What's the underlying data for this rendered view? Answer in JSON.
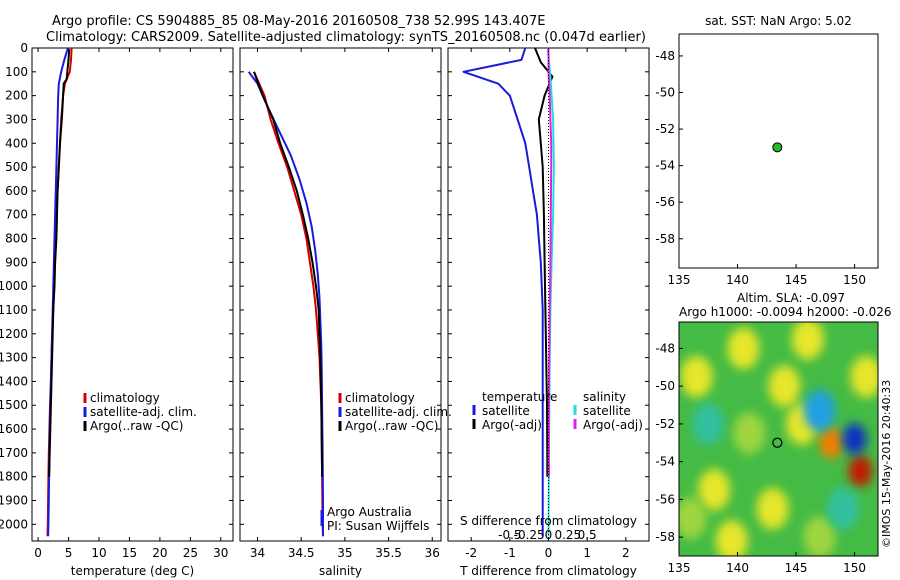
{
  "header": {
    "line1": "Argo profile: CS 5904885_85 08-May-2016 20160508_738 52.99S 143.407E",
    "line2": "Climatology: CARS2009. Satellite-adjusted climatology: synTS_20160508.nc (0.047d earlier)"
  },
  "side": {
    "sst_title": "sat. SST: NaN Argo: 5.02",
    "sla_title1": "Altim. SLA: -0.097",
    "sla_title2": "Argo h1000: -0.0094 h2000: -0.026",
    "credit": "©IMOS 15-May-2016 20:40:33"
  },
  "colors": {
    "climatology": "#d40000",
    "satellite": "#1a1adc",
    "argo": "#000000",
    "sal_satellite": "#22dddd",
    "sal_argo": "#e020e0",
    "dot": "#22bb22"
  },
  "chart_data": [
    {
      "type": "line",
      "id": "temperature",
      "xlabel": "temperature (deg C)",
      "ylabel": "",
      "xlim": [
        -1,
        32
      ],
      "ylim": [
        2070,
        0
      ],
      "xticks": [
        0,
        5,
        10,
        15,
        20,
        25,
        30
      ],
      "yticks": [
        0,
        100,
        200,
        300,
        400,
        500,
        600,
        700,
        800,
        900,
        1000,
        1100,
        1200,
        1300,
        1400,
        1500,
        1600,
        1700,
        1800,
        1900,
        2000
      ],
      "legend": [
        "climatology",
        "satellite-adj. clim.",
        "Argo(..raw -QC)"
      ],
      "series": [
        {
          "name": "climatology",
          "color": "climatology",
          "x": [
            5.5,
            5.4,
            5.2,
            4.4,
            4.1,
            3.8,
            3.6,
            3.4,
            3.2,
            3.0,
            2.9,
            2.8,
            2.6,
            2.5,
            2.3,
            2.2,
            2.1,
            1.95,
            1.85,
            1.75,
            1.7,
            1.65,
            1.6,
            1.55
          ],
          "y": [
            0,
            50,
            100,
            150,
            200,
            300,
            400,
            500,
            600,
            700,
            800,
            900,
            1000,
            1100,
            1200,
            1300,
            1400,
            1500,
            1600,
            1700,
            1800,
            1900,
            2000,
            2050
          ]
        },
        {
          "name": "satellite-adj. clim.",
          "color": "satellite",
          "x": [
            4.9,
            4.3,
            3.8,
            3.4,
            3.3,
            3.2,
            3.1,
            3.0,
            2.9,
            2.8,
            2.7,
            2.6,
            2.5,
            2.4,
            2.3,
            2.2,
            2.1,
            2.0,
            1.9,
            1.85,
            1.8,
            1.75,
            1.7,
            1.65
          ],
          "y": [
            0,
            50,
            100,
            150,
            200,
            300,
            400,
            500,
            600,
            700,
            800,
            900,
            1000,
            1100,
            1200,
            1300,
            1400,
            1500,
            1600,
            1700,
            1800,
            1900,
            2000,
            2050
          ]
        },
        {
          "name": "Argo(..raw -QC)",
          "color": "argo",
          "x": [
            5.1,
            5.0,
            4.8,
            4.7,
            4.2,
            4.0,
            3.9,
            3.6,
            3.4,
            3.2,
            3.1,
            3.0,
            2.8,
            2.7,
            2.5,
            2.4,
            2.3,
            2.2,
            2.1,
            2.0,
            1.9,
            1.8
          ],
          "y": [
            5,
            50,
            100,
            130,
            150,
            250,
            300,
            400,
            500,
            600,
            700,
            800,
            900,
            1000,
            1100,
            1200,
            1300,
            1400,
            1500,
            1600,
            1700,
            1800
          ]
        }
      ]
    },
    {
      "type": "line",
      "id": "salinity",
      "xlabel": "salinity",
      "ylabel": "",
      "xlim": [
        33.8,
        36.1
      ],
      "ylim": [
        2070,
        0
      ],
      "xticks": [
        34,
        34.5,
        35,
        35.5,
        36
      ],
      "legend": [
        "climatology",
        "satellite-adj. clim.",
        "Argo(..raw -QC)"
      ],
      "annotations": [
        "Argo Australia",
        "PI: Susan Wijffels"
      ],
      "series": [
        {
          "name": "climatology",
          "color": "climatology",
          "x": [
            33.96,
            34.08,
            34.15,
            34.24,
            34.34,
            34.42,
            34.5,
            34.56,
            34.6,
            34.64,
            34.67,
            34.69,
            34.71,
            34.72,
            34.73,
            34.735,
            34.74,
            34.745,
            34.75
          ],
          "y": [
            100,
            200,
            300,
            400,
            500,
            600,
            700,
            800,
            900,
            1000,
            1100,
            1200,
            1300,
            1400,
            1500,
            1600,
            1800,
            2000,
            2050
          ]
        },
        {
          "name": "satellite-adj. clim.",
          "color": "satellite",
          "x": [
            33.9,
            34.0,
            34.12,
            34.25,
            34.38,
            34.48,
            34.56,
            34.62,
            34.66,
            34.69,
            34.71,
            34.72,
            34.73,
            34.735,
            34.74,
            34.745,
            34.75,
            34.75
          ],
          "y": [
            100,
            150,
            250,
            350,
            450,
            550,
            650,
            750,
            850,
            950,
            1050,
            1150,
            1250,
            1350,
            1500,
            1700,
            1900,
            2050
          ]
        },
        {
          "name": "Argo(..raw -QC)",
          "color": "argo",
          "x": [
            33.96,
            34.06,
            34.12,
            34.18,
            34.26,
            34.36,
            34.45,
            34.52,
            34.58,
            34.63,
            34.67,
            34.7,
            34.71,
            34.72,
            34.73,
            34.74
          ],
          "y": [
            100,
            200,
            250,
            300,
            400,
            500,
            600,
            700,
            800,
            900,
            1000,
            1100,
            1200,
            1300,
            1500,
            1800
          ]
        }
      ]
    },
    {
      "type": "line",
      "id": "difference",
      "xlabel": "T difference from climatology",
      "xlabel_top": "S difference from climatology",
      "xlim": [
        -2.6,
        2.6
      ],
      "ylim": [
        2070,
        0
      ],
      "xticks": [
        -2,
        -1,
        0,
        1,
        2
      ],
      "s_ticks": [
        -0.5,
        -0.25,
        0,
        0.25,
        0.5
      ],
      "legend_groups": [
        {
          "title": "temperature",
          "entries": [
            "satellite",
            "Argo(-adj)"
          ]
        },
        {
          "title": "salinity",
          "entries": [
            "satellite",
            "Argo(-adj)"
          ]
        }
      ],
      "series": [
        {
          "name": "temperature satellite",
          "color": "satellite",
          "x": [
            -0.6,
            -0.7,
            -2.2,
            -1.3,
            -1.0,
            -0.8,
            -0.6,
            -0.5,
            -0.4,
            -0.3,
            -0.25,
            -0.2,
            -0.15,
            -0.15,
            -0.15,
            -0.15,
            -0.15
          ],
          "y": [
            0,
            50,
            100,
            150,
            200,
            300,
            400,
            500,
            600,
            700,
            800,
            900,
            1100,
            1300,
            1500,
            1800,
            2050
          ]
        },
        {
          "name": "temperature Argo(-adj)",
          "color": "argo",
          "x": [
            -0.35,
            -0.2,
            0.1,
            -0.1,
            -0.25,
            -0.2,
            -0.15,
            -0.12,
            -0.1,
            -0.08,
            -0.06,
            -0.04,
            -0.03,
            -0.03
          ],
          "y": [
            0,
            60,
            120,
            200,
            300,
            400,
            500,
            700,
            900,
            1100,
            1300,
            1500,
            1700,
            1800
          ]
        },
        {
          "name": "salinity satellite",
          "color": "sal_satellite",
          "x": [
            -0.02,
            0.04,
            0.08,
            0.12,
            0.14,
            0.12,
            0.08,
            0.05,
            0.03,
            0.02,
            0.01,
            0.005,
            0.0
          ],
          "y": [
            0,
            100,
            200,
            300,
            500,
            700,
            900,
            1100,
            1300,
            1500,
            1700,
            1900,
            2050
          ]
        },
        {
          "name": "salinity Argo(-adj)",
          "color": "sal_argo",
          "x": [
            0.0,
            0.0,
            0.03,
            0.05,
            0.07,
            0.07,
            0.06,
            0.05,
            0.03,
            0.02,
            0.01,
            0.01
          ],
          "y": [
            0,
            100,
            200,
            300,
            400,
            500,
            700,
            900,
            1100,
            1300,
            1500,
            1800
          ]
        }
      ]
    },
    {
      "type": "scatter",
      "id": "sst_map",
      "title": "sat. SST: NaN Argo: 5.02",
      "xlim": [
        135,
        152
      ],
      "ylim": [
        -59.6,
        -46.8
      ],
      "xticks": [
        135,
        140,
        145,
        150
      ],
      "yticks": [
        -48,
        -50,
        -52,
        -54,
        -56,
        -58
      ],
      "points": [
        {
          "x": 143.4,
          "y": -53.0
        }
      ]
    },
    {
      "type": "heatmap",
      "id": "sla_map",
      "title": "Altim. SLA: -0.097",
      "xlim": [
        135,
        152
      ],
      "ylim": [
        -59.0,
        -46.6
      ],
      "xticks": [
        135,
        140,
        145,
        150
      ],
      "yticks": [
        -48,
        -50,
        -52,
        -54,
        -56,
        -58
      ],
      "points": [
        {
          "x": 143.4,
          "y": -53.0
        }
      ],
      "blobs": [
        {
          "x": 136.5,
          "y": -49.5,
          "v": 0.5
        },
        {
          "x": 138.0,
          "y": -55.5,
          "v": 0.6
        },
        {
          "x": 140.5,
          "y": -48.0,
          "v": 0.7
        },
        {
          "x": 141.0,
          "y": -52.5,
          "v": 0.2
        },
        {
          "x": 137.5,
          "y": -52.0,
          "v": -0.3
        },
        {
          "x": 144.0,
          "y": -50.0,
          "v": 0.4
        },
        {
          "x": 145.5,
          "y": -52.0,
          "v": 0.5
        },
        {
          "x": 148.0,
          "y": -53.0,
          "v": 1.4
        },
        {
          "x": 150.5,
          "y": -54.5,
          "v": 2.0
        },
        {
          "x": 150.0,
          "y": -52.8,
          "v": -1.8
        },
        {
          "x": 147.0,
          "y": -51.3,
          "v": -0.8
        },
        {
          "x": 151.0,
          "y": -49.5,
          "v": 0.7
        },
        {
          "x": 143.0,
          "y": -56.5,
          "v": 0.5
        },
        {
          "x": 139.5,
          "y": -58.2,
          "v": 0.5
        },
        {
          "x": 147.0,
          "y": -58.0,
          "v": 0.3
        },
        {
          "x": 146.0,
          "y": -47.5,
          "v": 0.5
        },
        {
          "x": 149.0,
          "y": -56.5,
          "v": -0.3
        },
        {
          "x": 136.0,
          "y": -57.0,
          "v": 0.3
        }
      ]
    }
  ]
}
